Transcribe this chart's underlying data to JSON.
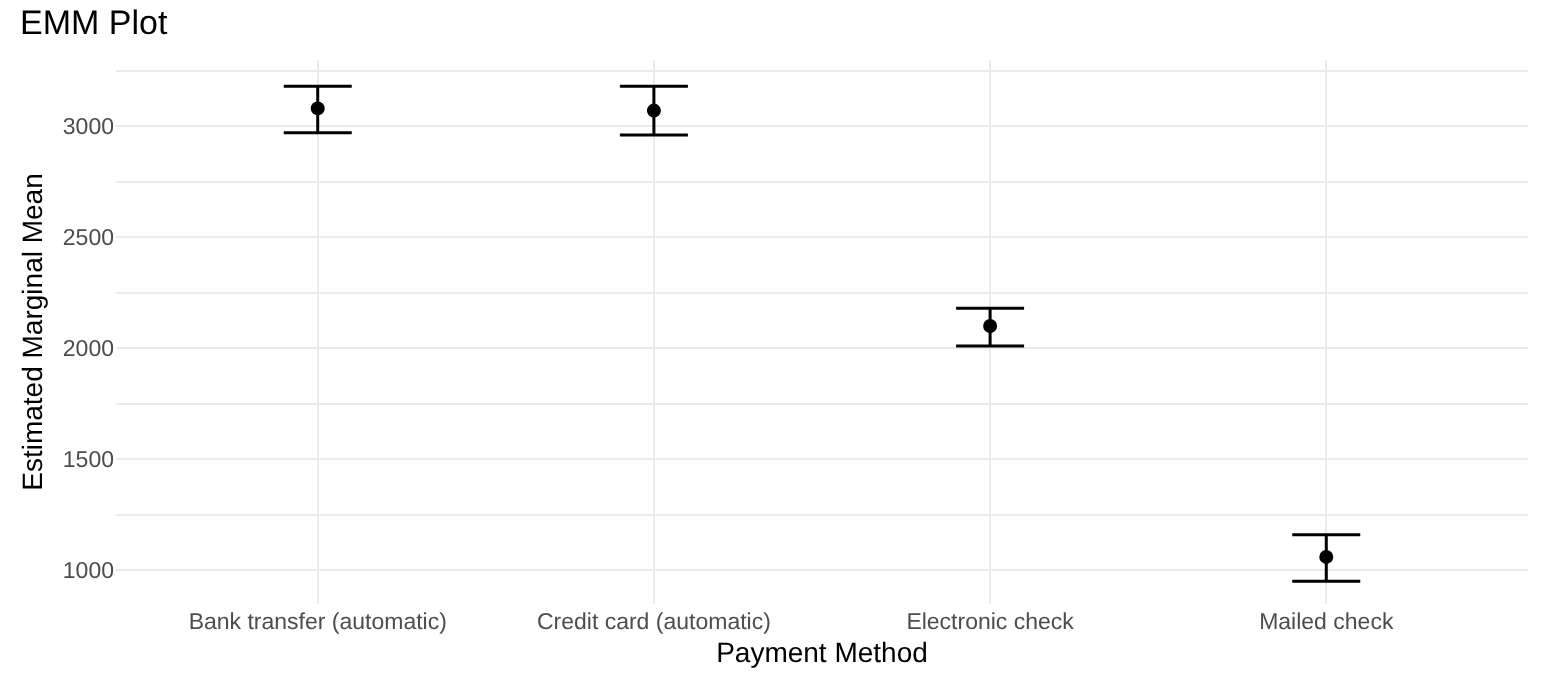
{
  "chart_data": {
    "type": "scatter",
    "title": "EMM Plot",
    "xlabel": "Payment Method",
    "ylabel": "Estimated Marginal Mean",
    "categories": [
      "Bank transfer (automatic)",
      "Credit card (automatic)",
      "Electronic check",
      "Mailed check"
    ],
    "series": [
      {
        "color": "#000000",
        "values": [
          3080,
          3070,
          2100,
          1060
        ],
        "errors": [
          [
            2970,
            3180
          ],
          [
            2960,
            3180
          ],
          [
            2010,
            2180
          ],
          [
            950,
            1160
          ]
        ]
      }
    ],
    "ylim": [
      848,
      3298
    ],
    "yticks": [
      1000,
      {
        "value": 1250,
        "label": null
      },
      1500,
      {
        "value": 1750,
        "label": null
      },
      2000,
      {
        "value": 2250,
        "label": null
      },
      2500,
      {
        "value": 2750,
        "label": null
      },
      3000,
      {
        "value": 3250,
        "label": null
      }
    ],
    "grid": true,
    "marker": "circle"
  }
}
